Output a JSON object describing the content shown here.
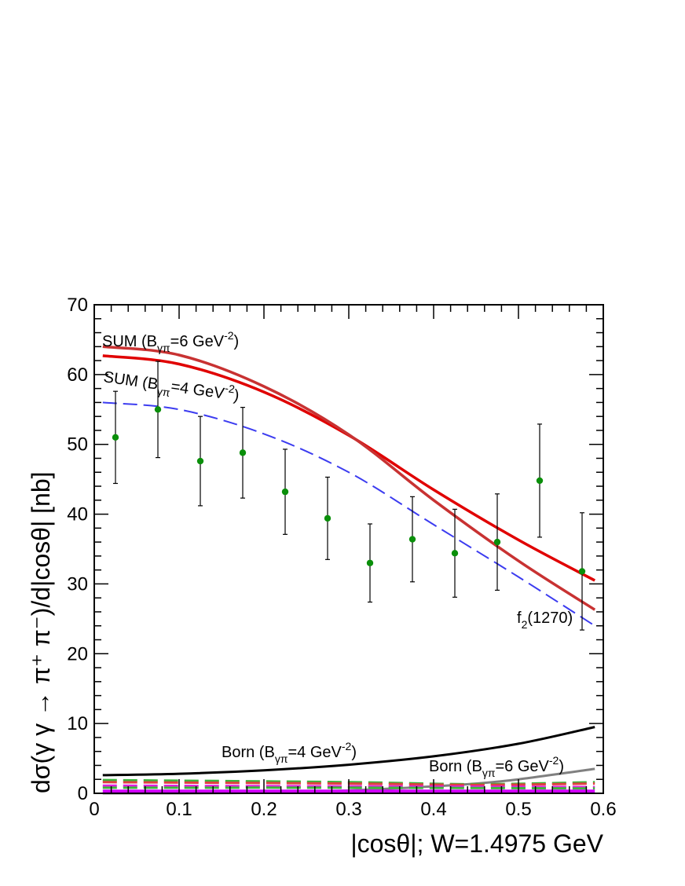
{
  "chart_data": {
    "type": "line",
    "title": "",
    "xlabel": "|cosθ|; W=1.4975 GeV",
    "ylabel": "dσ(γ γ → π⁺ π⁻)/d|cosθ| [nb]",
    "xlim": [
      0,
      0.6
    ],
    "ylim": [
      0,
      70
    ],
    "x_ticks": [
      "0",
      "0.1",
      "0.2",
      "0.3",
      "0.4",
      "0.5",
      "0.6"
    ],
    "y_ticks": [
      "0",
      "10",
      "20",
      "30",
      "40",
      "50",
      "60",
      "70"
    ],
    "data_points": {
      "name": "data",
      "color": "#0a8f0a",
      "x": [
        0.025,
        0.075,
        0.125,
        0.175,
        0.225,
        0.275,
        0.325,
        0.375,
        0.425,
        0.475,
        0.525,
        0.575
      ],
      "y": [
        51.0,
        55.0,
        47.6,
        48.8,
        43.2,
        39.4,
        33.0,
        36.4,
        34.4,
        36.0,
        44.8,
        31.8
      ],
      "err": [
        6.6,
        6.9,
        6.4,
        6.5,
        6.1,
        5.9,
        5.6,
        6.1,
        6.3,
        6.9,
        8.1,
        8.4
      ]
    },
    "series": [
      {
        "name": "SUM (B=6 GeV^-2)",
        "color": "#e00000",
        "style": "solid",
        "width": 3.5,
        "x": [
          0.01,
          0.1,
          0.2,
          0.3,
          0.4,
          0.5,
          0.59
        ],
        "y": [
          62.7,
          61.5,
          57.5,
          51.3,
          43.5,
          36.3,
          30.5
        ]
      },
      {
        "name": "SUM (B=4 GeV^-2)",
        "color": "#c83232",
        "style": "solid",
        "width": 3.5,
        "x": [
          0.01,
          0.1,
          0.2,
          0.3,
          0.4,
          0.5,
          0.59
        ],
        "y": [
          64.0,
          62.8,
          58.3,
          51.4,
          42.0,
          33.3,
          26.3
        ]
      },
      {
        "name": "f2(1270)",
        "color": "#3c3cf0",
        "style": "dash",
        "width": 2,
        "x": [
          0.01,
          0.1,
          0.2,
          0.3,
          0.4,
          0.5,
          0.59
        ],
        "y": [
          56.0,
          55.0,
          51.5,
          46.0,
          38.5,
          31.0,
          24.0
        ]
      },
      {
        "name": "Born (B=4 GeV^-2)",
        "color": "#000000",
        "style": "solid",
        "width": 3,
        "x": [
          0.01,
          0.1,
          0.2,
          0.3,
          0.4,
          0.5,
          0.59
        ],
        "y": [
          2.6,
          2.8,
          3.3,
          4.1,
          5.3,
          7.1,
          9.5
        ]
      },
      {
        "name": "Born (B=6 GeV^-2)",
        "color": "#808080",
        "style": "solid",
        "width": 3,
        "x": [
          0.01,
          0.1,
          0.2,
          0.3,
          0.4,
          0.45,
          0.5,
          0.59
        ],
        "y": [
          0.0,
          0.0,
          0.1,
          0.4,
          1.0,
          1.4,
          2.0,
          3.5
        ]
      },
      {
        "name": "dashed green",
        "color": "#3cb43c",
        "style": "dash",
        "width": 3,
        "x": [
          0.01,
          0.3,
          0.45,
          0.59
        ],
        "y": [
          1.9,
          1.6,
          1.3,
          1.6
        ]
      },
      {
        "name": "dashed red",
        "color": "#e04040",
        "style": "dash",
        "width": 3,
        "x": [
          0.01,
          0.3,
          0.45,
          0.59
        ],
        "y": [
          1.6,
          1.4,
          1.2,
          1.4
        ]
      },
      {
        "name": "dashed magenta",
        "color": "#e020e0",
        "style": "dash",
        "width": 3,
        "x": [
          0.01,
          0.3,
          0.59
        ],
        "y": [
          1.1,
          1.0,
          0.9
        ]
      },
      {
        "name": "dashed green 2",
        "color": "#3cb43c",
        "style": "dash",
        "width": 3,
        "x": [
          0.01,
          0.3,
          0.59
        ],
        "y": [
          0.8,
          0.8,
          0.7
        ]
      },
      {
        "name": "magenta baseline",
        "color": "#d000ff",
        "style": "solid",
        "width": 4,
        "x": [
          0.01,
          0.59
        ],
        "y": [
          0.3,
          0.3
        ]
      }
    ],
    "annotations": [
      {
        "text": "SUM (Bγπ=6 GeV⁻²)",
        "main": "SUM (B",
        "sub": "γπ",
        "rest": "=6 GeV",
        "sup": "-2",
        "end": ")"
      },
      {
        "text": "SUM (Bγπ=4 GeV⁻²)",
        "main": "SUM (B",
        "sub": "γπ",
        "rest": "=4 GeV",
        "sup": "-2",
        "end": ")"
      },
      {
        "text": "f2(1270)",
        "main": "f",
        "sub": "2",
        "rest": "(1270)",
        "sup": "",
        "end": ""
      },
      {
        "text": "Born (Bγπ=4 GeV⁻²)",
        "main": "Born (B",
        "sub": "γπ",
        "rest": "=4 GeV",
        "sup": "-2",
        "end": ")"
      },
      {
        "text": "Born (Bγπ=6 GeV⁻²)",
        "main": "Born (B",
        "sub": "γπ",
        "rest": "=6 GeV",
        "sup": "-2",
        "end": ")"
      }
    ]
  }
}
